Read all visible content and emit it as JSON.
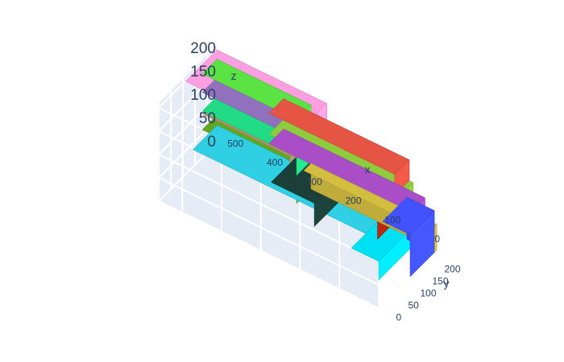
{
  "chart_data": {
    "type": "3d-mesh-boxes",
    "title": "",
    "axes": {
      "x": {
        "label": "x",
        "range": [
          0,
          560
        ],
        "ticks": [
          0,
          100,
          200,
          300,
          400,
          500
        ]
      },
      "y": {
        "label": "y",
        "range": [
          0,
          240
        ],
        "ticks": [
          0,
          50,
          100,
          150,
          200
        ]
      },
      "z": {
        "label": "z",
        "range": [
          0,
          210
        ],
        "ticks": [
          0,
          50,
          100,
          150,
          200
        ]
      }
    },
    "grid": true,
    "boxes": [
      {
        "x": [
          0,
          320
        ],
        "y": [
          210,
          240
        ],
        "z": [
          0,
          55
        ],
        "color": "#c9b53d"
      },
      {
        "x": [
          0,
          70
        ],
        "y": [
          130,
          230
        ],
        "z": [
          0,
          90
        ],
        "color": "#3e4ef2"
      },
      {
        "x": [
          320,
          560
        ],
        "y": [
          180,
          240
        ],
        "z": [
          0,
          60
        ],
        "color": "#5aa11e"
      },
      {
        "x": [
          320,
          560
        ],
        "y": [
          180,
          240
        ],
        "z": [
          60,
          100
        ],
        "color": "#1fd17f"
      },
      {
        "x": [
          320,
          560
        ],
        "y": [
          180,
          240
        ],
        "z": [
          100,
          140
        ],
        "color": "#8a6cb4"
      },
      {
        "x": [
          320,
          560
        ],
        "y": [
          180,
          240
        ],
        "z": [
          140,
          180
        ],
        "color": "#56d840"
      },
      {
        "x": [
          0,
          70
        ],
        "y": [
          0,
          130
        ],
        "z": [
          60,
          100
        ],
        "color": "#00d5e8"
      },
      {
        "x": [
          70,
          510
        ],
        "y": [
          60,
          160
        ],
        "z": [
          85,
          100
        ],
        "color": "#2dc6d8"
      },
      {
        "x": [
          40,
          110
        ],
        "y": [
          60,
          150
        ],
        "z": [
          100,
          140
        ],
        "color": "#a6240e"
      },
      {
        "x": [
          40,
          110
        ],
        "y": [
          60,
          150
        ],
        "z": [
          140,
          190
        ],
        "color": "#229168"
      },
      {
        "x": [
          30,
          390
        ],
        "y": [
          180,
          240
        ],
        "z": [
          55,
          100
        ],
        "color": "#a24abe"
      },
      {
        "x": [
          60,
          390
        ],
        "y": [
          180,
          240
        ],
        "z": [
          100,
          120
        ],
        "color": "#88c23a"
      },
      {
        "x": [
          70,
          390
        ],
        "y": [
          180,
          240
        ],
        "z": [
          120,
          165
        ],
        "color": "#db5040"
      },
      {
        "x": [
          170,
          280
        ],
        "y": [
          10,
          120
        ],
        "z": [
          100,
          150
        ],
        "color": "#193d36"
      },
      {
        "x": [
          220,
          280
        ],
        "y": [
          20,
          60
        ],
        "z": [
          150,
          180
        ],
        "color": "#8a2c6f"
      },
      {
        "x": [
          240,
          280
        ],
        "y": [
          20,
          60
        ],
        "z": [
          180,
          200
        ],
        "color": "#3ce640"
      },
      {
        "x": [
          300,
          520
        ],
        "y": [
          120,
          240
        ],
        "z": [
          100,
          140
        ],
        "color": "#a38963"
      },
      {
        "x": [
          280,
          560
        ],
        "y": [
          110,
          240
        ],
        "z": [
          140,
          200
        ],
        "color": "#f496d6"
      },
      {
        "x": [
          490,
          560
        ],
        "y": [
          170,
          240
        ],
        "z": [
          180,
          200
        ],
        "color": "#e8b390"
      },
      {
        "x": [
          460,
          560
        ],
        "y": [
          210,
          240
        ],
        "z": [
          120,
          140
        ],
        "color": "#4b5cf0"
      }
    ]
  }
}
